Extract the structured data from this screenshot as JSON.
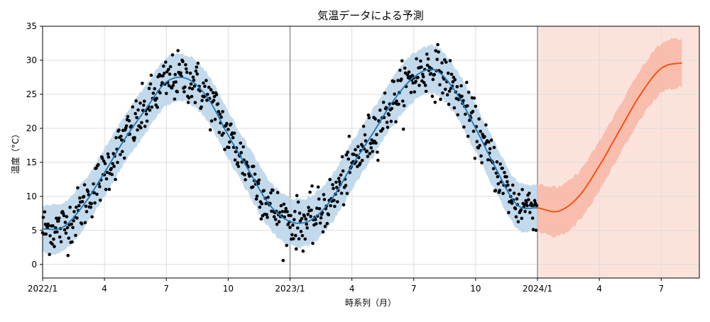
{
  "chart_data": {
    "type": "line",
    "title": "気温データによる予測",
    "xlabel": "時系列（月）",
    "ylabel": "温度（°C）",
    "x_unit": "month",
    "x_start": "2022-01",
    "xlim": [
      "2022-01",
      "2024-08"
    ],
    "ylim": [
      -2,
      35
    ],
    "yticks": [
      0,
      5,
      10,
      15,
      20,
      25,
      30,
      35
    ],
    "xticks": [
      {
        "x": "2022-01",
        "label": "2022/1"
      },
      {
        "x": "2022-04",
        "label": "4"
      },
      {
        "x": "2022-07",
        "label": "7"
      },
      {
        "x": "2022-10",
        "label": "10"
      },
      {
        "x": "2023-01",
        "label": "2023/1"
      },
      {
        "x": "2023-04",
        "label": "4"
      },
      {
        "x": "2023-07",
        "label": "7"
      },
      {
        "x": "2023-10",
        "label": "10"
      },
      {
        "x": "2024-01",
        "label": "2024/1"
      },
      {
        "x": "2024-04",
        "label": "4"
      },
      {
        "x": "2024-07",
        "label": "7"
      }
    ],
    "grid": true,
    "vertical_markers": [
      "2023-01",
      "2024-01"
    ],
    "forecast_region": {
      "from": "2024-01",
      "to": "2024-08",
      "color": "#fbe3dc"
    },
    "series": [
      {
        "role": "observed",
        "style": "scatter",
        "color": "#000000",
        "x": [
          "2022-01",
          "2022-02",
          "2022-03",
          "2022-04",
          "2022-05",
          "2022-06",
          "2022-07",
          "2022-08",
          "2022-09",
          "2022-10",
          "2022-11",
          "2022-12",
          "2023-01",
          "2023-02",
          "2023-03",
          "2023-04",
          "2023-05",
          "2023-06",
          "2023-07",
          "2023-08",
          "2023-09",
          "2023-10",
          "2023-11",
          "2023-12"
        ],
        "values": [
          5.2,
          5.5,
          8.8,
          13.5,
          18.5,
          22.8,
          26.8,
          27.3,
          24.5,
          19.0,
          13.8,
          8.8,
          6.3,
          6.5,
          9.5,
          14.5,
          19.2,
          24.0,
          27.5,
          28.6,
          25.5,
          20.0,
          14.0,
          8.8
        ]
      },
      {
        "role": "fitted",
        "style": "line",
        "color": "#1f77b4",
        "band_color": "#b7d3e9",
        "band_halfwidth": 3.5,
        "x": [
          "2022-01",
          "2022-02",
          "2022-03",
          "2022-04",
          "2022-05",
          "2022-06",
          "2022-07",
          "2022-08",
          "2022-09",
          "2022-10",
          "2022-11",
          "2022-12",
          "2023-01",
          "2023-02",
          "2023-03",
          "2023-04",
          "2023-05",
          "2023-06",
          "2023-07",
          "2023-08",
          "2023-09",
          "2023-10",
          "2023-11",
          "2023-12",
          "2024-01"
        ],
        "values": [
          5.2,
          5.5,
          8.8,
          13.5,
          18.5,
          22.8,
          26.8,
          27.3,
          24.5,
          19.0,
          13.8,
          8.8,
          6.3,
          6.5,
          9.5,
          14.5,
          19.2,
          24.0,
          27.5,
          28.6,
          25.5,
          20.0,
          14.0,
          8.8,
          8.3
        ]
      },
      {
        "role": "forecast",
        "style": "line",
        "color": "#ff4500",
        "band_color": "#f7b6a3",
        "band_halfwidth": 3.6,
        "x": [
          "2024-01",
          "2024-02",
          "2024-03",
          "2024-04",
          "2024-05",
          "2024-06",
          "2024-07",
          "2024-08"
        ],
        "values": [
          8.3,
          7.8,
          10.0,
          14.5,
          19.8,
          25.0,
          28.8,
          29.6
        ]
      }
    ]
  }
}
